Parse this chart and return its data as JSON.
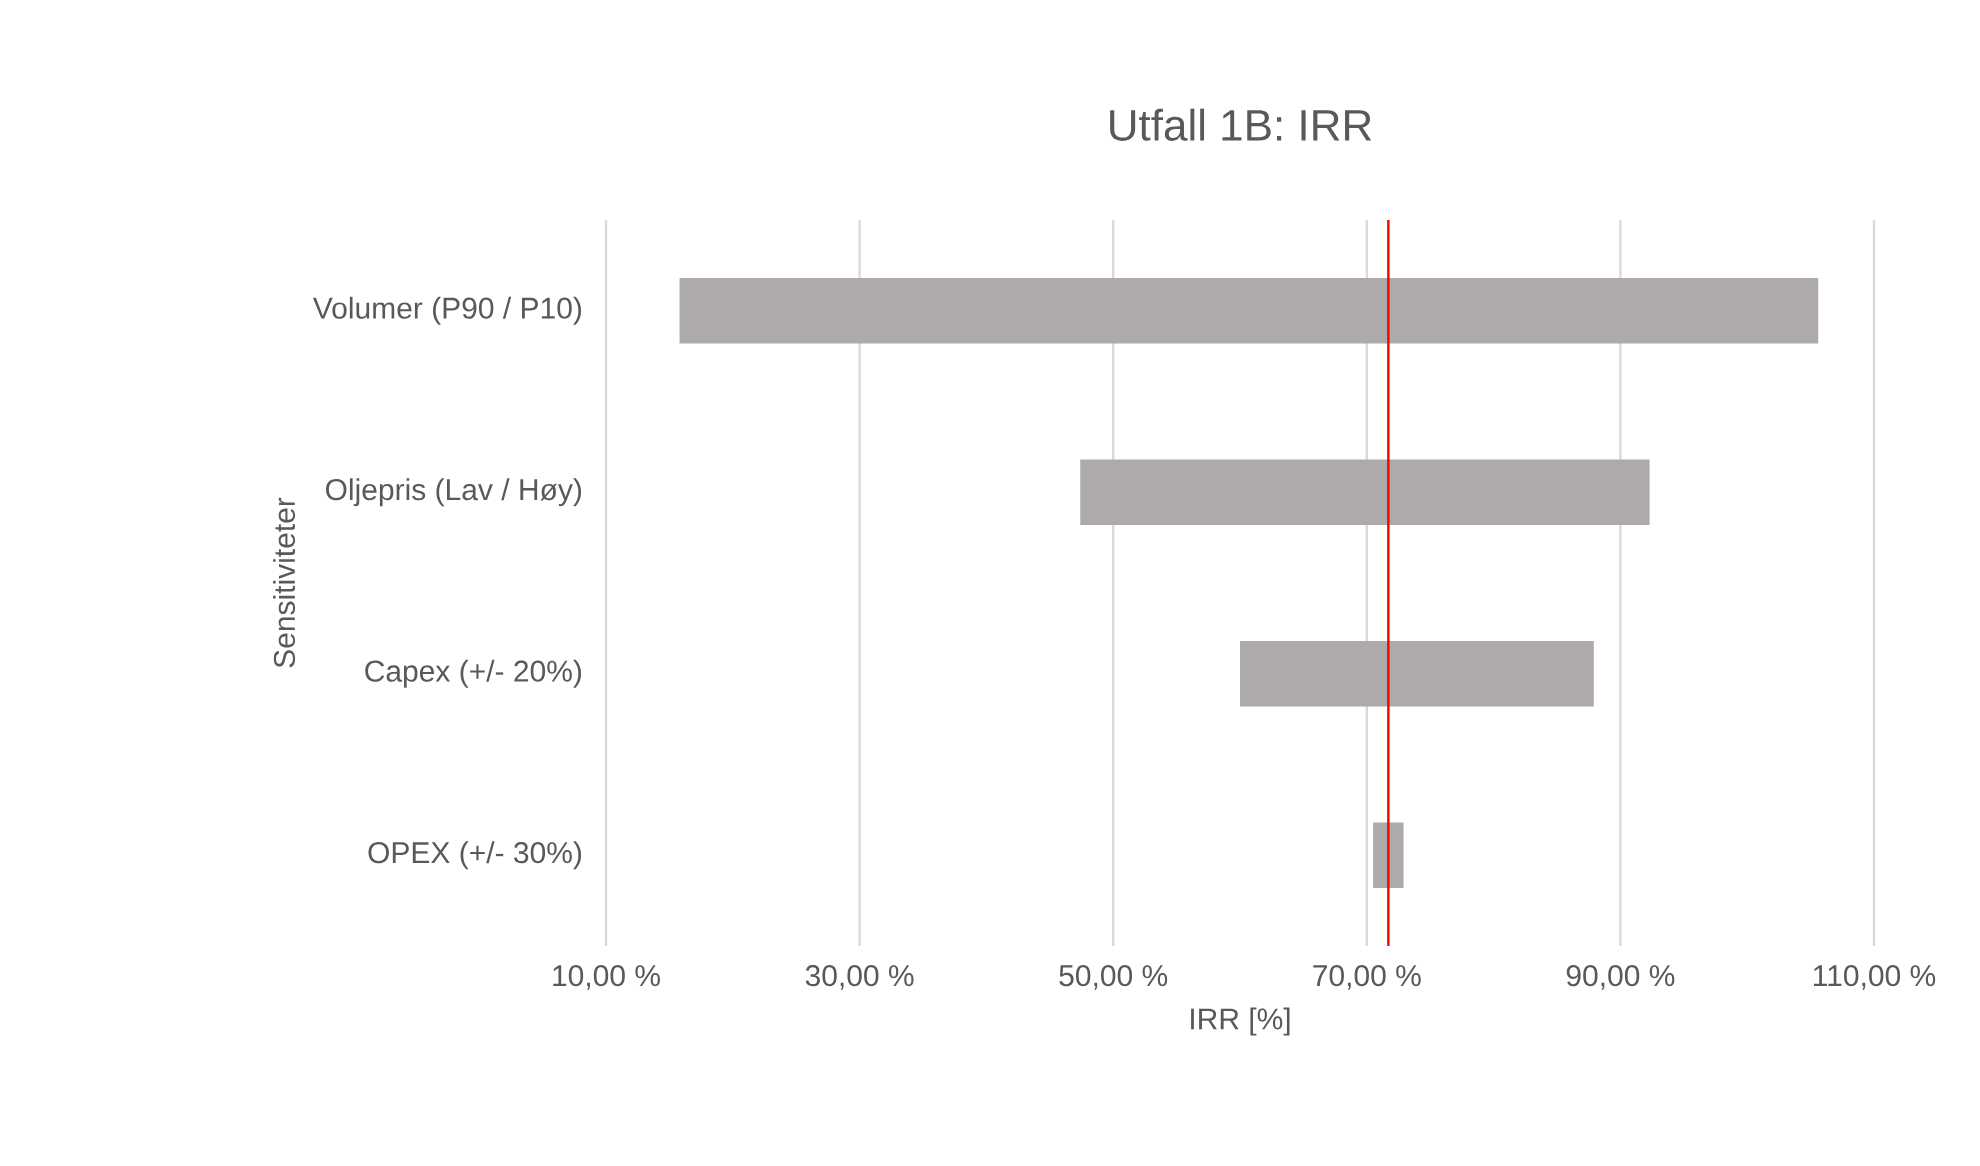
{
  "chart_data": {
    "type": "bar",
    "orientation": "horizontal",
    "title": "Utfall 1B: IRR",
    "xlabel": "IRR [%]",
    "ylabel": "Sensitiviteter",
    "categories": [
      "Volumer (P90 / P10)",
      "Oljepris (Lav / Høy)",
      "Capex (+/- 20%)",
      "OPEX (+/- 30%)"
    ],
    "base": [
      15.8,
      47.4,
      60.0,
      70.5
    ],
    "values": [
      89.8,
      44.9,
      27.9,
      2.4
    ],
    "color": "#aeaaaa",
    "xlim": [
      10,
      110
    ],
    "xticks": [
      {
        "value": 10,
        "label": "10,00 %"
      },
      {
        "value": 30,
        "label": "30,00 %"
      },
      {
        "value": 50,
        "label": "50,00 %"
      },
      {
        "value": 70,
        "label": "70,00 %"
      },
      {
        "value": 90,
        "label": "90,00 %"
      },
      {
        "value": 110,
        "label": "110,00 %"
      }
    ],
    "ref_lines": [
      {
        "axis": "x",
        "value": 71.7,
        "color": "#ff0000"
      }
    ],
    "grid": "x"
  }
}
